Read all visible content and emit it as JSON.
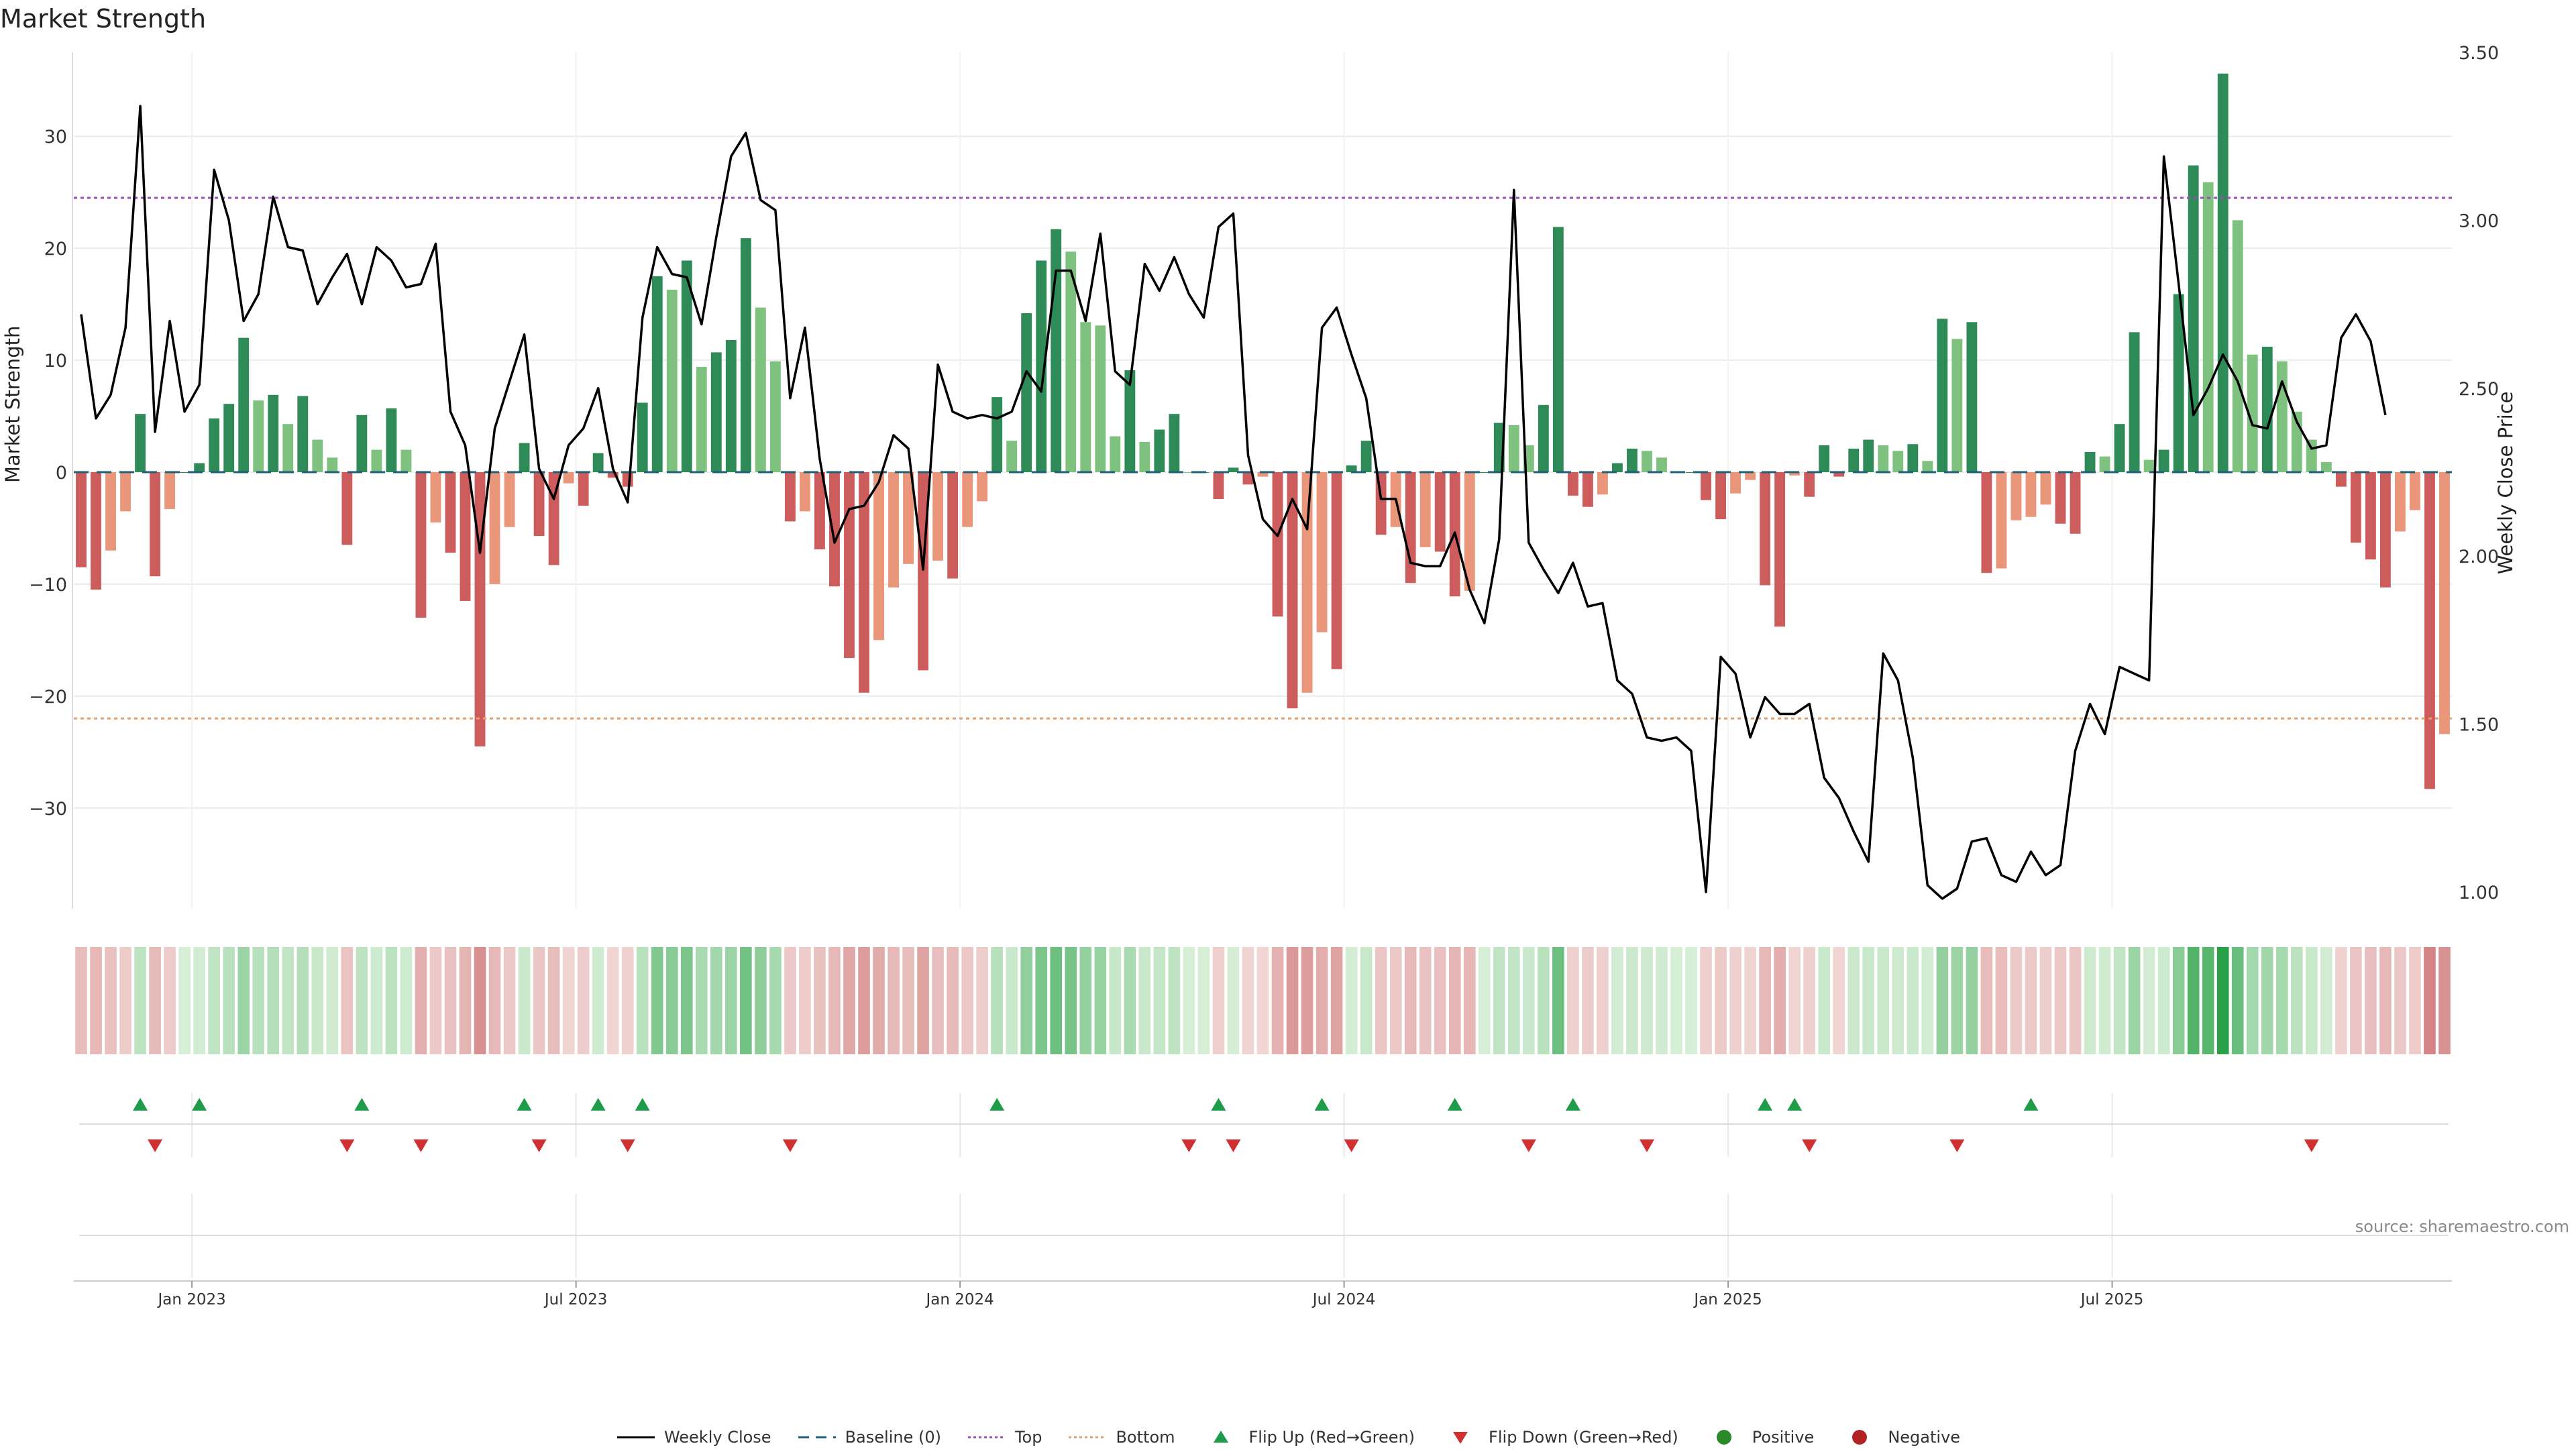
{
  "title": "Market Strength",
  "source": "source: sharemaestro.com",
  "chart_data": {
    "type": "bar",
    "ylabel": "Market Strength",
    "y2label": "Weekly Close Price",
    "ylim": [
      -39,
      37.5
    ],
    "y2lim": [
      0.95,
      3.5
    ],
    "yticks": [
      -30,
      -20,
      -10,
      0,
      10,
      20,
      30
    ],
    "yticklabels": [
      "−30",
      "−20",
      "−10",
      "0",
      "10",
      "20",
      "30"
    ],
    "y2ticks": [
      1.0,
      1.5,
      2.0,
      2.5,
      3.0,
      3.5
    ],
    "y2ticklabels": [
      "1.00",
      "1.50",
      "2.00",
      "2.50",
      "3.00",
      "3.50"
    ],
    "xticklabels": [
      "Jan 2023",
      "Jul 2023",
      "Jan 2024",
      "Jul 2024",
      "Jan 2025",
      "Jul 2025"
    ],
    "xtick_index": [
      8,
      34,
      60,
      86,
      112,
      138
    ],
    "top_line": 24.5,
    "bottom_line": -22,
    "strength": [
      -8.5,
      -10.5,
      -7,
      -3.5,
      5.2,
      -9.3,
      -3.3,
      0,
      0.8,
      4.8,
      6.1,
      12,
      6.4,
      6.9,
      4.3,
      6.8,
      2.9,
      1.3,
      -6.5,
      5.1,
      2,
      5.7,
      2,
      -13,
      -4.5,
      -7.2,
      -11.5,
      -24.5,
      -10,
      -4.9,
      2.6,
      -5.7,
      -8.3,
      -1,
      -3,
      1.7,
      -0.5,
      -1.3,
      6.2,
      17.5,
      16.3,
      18.9,
      9.4,
      10.7,
      11.8,
      20.9,
      14.7,
      9.9,
      -4.4,
      -3.5,
      -6.9,
      -10.2,
      -16.6,
      -19.7,
      -15,
      -10.3,
      -8.2,
      -17.7,
      -7.9,
      -9.5,
      -4.9,
      -2.6,
      6.7,
      2.8,
      14.2,
      18.9,
      21.7,
      19.7,
      13.4,
      13.1,
      3.2,
      9.1,
      2.7,
      3.8,
      5.2,
      0,
      0,
      -2.4,
      0.4,
      -1.1,
      -0.4,
      -12.9,
      -21.1,
      -19.7,
      -14.3,
      -17.6,
      0.6,
      2.8,
      -5.6,
      -4.9,
      -9.9,
      -6.7,
      -7.1,
      -11.1,
      -10.6,
      0,
      4.4,
      4.2,
      2.4,
      6,
      21.9,
      -2.1,
      -3.1,
      -2,
      0.8,
      2.1,
      1.9,
      1.3,
      0,
      0,
      -2.5,
      -4.2,
      -1.9,
      -0.7,
      -10.1,
      -13.8,
      -0.3,
      -2.2,
      2.4,
      -0.4,
      2.1,
      2.9,
      2.4,
      1.9,
      2.5,
      1,
      13.7,
      11.9,
      13.4,
      -9,
      -8.6,
      -4.3,
      -4,
      -2.9,
      -4.6,
      -5.5,
      1.8,
      1.4,
      4.3,
      12.5,
      1.1,
      2,
      15.9,
      27.4,
      25.9,
      35.6,
      22.5,
      10.5,
      11.2,
      9.9,
      5.4,
      2.9,
      0.9,
      -1.3,
      -6.3,
      -7.8,
      -10.3,
      -5.3,
      -3.4,
      -28.3,
      -23.4
    ],
    "price": [
      2.72,
      2.41,
      2.48,
      2.68,
      3.34,
      2.37,
      2.7,
      2.43,
      2.51,
      3.15,
      3.0,
      2.7,
      2.78,
      3.07,
      2.92,
      2.91,
      2.75,
      2.83,
      2.9,
      2.75,
      2.92,
      2.88,
      2.8,
      2.81,
      2.93,
      2.43,
      2.33,
      2.01,
      2.38,
      2.52,
      2.66,
      2.26,
      2.17,
      2.33,
      2.38,
      2.5,
      2.26,
      2.16,
      2.71,
      2.92,
      2.84,
      2.83,
      2.69,
      2.95,
      3.19,
      3.26,
      3.06,
      3.03,
      2.47,
      2.68,
      2.29,
      2.04,
      2.14,
      2.15,
      2.22,
      2.36,
      2.32,
      1.96,
      2.57,
      2.43,
      2.41,
      2.42,
      2.41,
      2.43,
      2.55,
      2.49,
      2.85,
      2.85,
      2.7,
      2.96,
      2.55,
      2.51,
      2.87,
      2.79,
      2.89,
      2.78,
      2.71,
      2.98,
      3.02,
      2.3,
      2.11,
      2.06,
      2.17,
      2.08,
      2.68,
      2.74,
      2.6,
      2.47,
      2.17,
      2.17,
      1.98,
      1.97,
      1.97,
      2.07,
      1.9,
      1.8,
      2.05,
      3.09,
      2.04,
      1.96,
      1.89,
      1.98,
      1.85,
      1.86,
      1.63,
      1.59,
      1.46,
      1.45,
      1.46,
      1.42,
      1.0,
      1.7,
      1.65,
      1.46,
      1.58,
      1.53,
      1.53,
      1.56,
      1.34,
      1.28,
      1.18,
      1.09,
      1.71,
      1.63,
      1.4,
      1.02,
      0.98,
      1.01,
      1.15,
      1.16,
      1.05,
      1.03,
      1.12,
      1.05,
      1.08,
      1.42,
      1.56,
      1.47,
      1.67,
      1.65,
      1.63,
      3.19,
      2.81,
      2.42,
      2.5,
      2.6,
      2.52,
      2.39,
      2.38,
      2.52,
      2.4,
      2.32,
      2.33,
      2.65,
      2.72,
      2.64,
      2.42
    ],
    "flips_up_index": [
      4,
      8,
      19,
      30,
      35,
      38,
      62,
      77,
      84,
      93,
      101,
      114,
      116,
      132
    ],
    "flips_down_index": [
      5,
      18,
      23,
      31,
      37,
      48,
      75,
      78,
      86,
      98,
      106,
      117,
      127,
      151
    ],
    "legend": [
      {
        "label": "Weekly Close",
        "marker": "line",
        "color": "#000000"
      },
      {
        "label": "Baseline (0)",
        "marker": "dash",
        "color": "#1f5f7a"
      },
      {
        "label": "Top",
        "marker": "dot",
        "color": "#9b4dbb"
      },
      {
        "label": "Bottom",
        "marker": "dot",
        "color": "#e0a070"
      },
      {
        "label": "Flip Up (Red→Green)",
        "marker": "tri-up",
        "color": "#1e9c4a"
      },
      {
        "label": "Flip Down (Green→Red)",
        "marker": "tri-down",
        "color": "#d03030"
      },
      {
        "label": "Positive",
        "marker": "circle",
        "color": "#2a8a2a"
      },
      {
        "label": "Negative",
        "marker": "circle",
        "color": "#b22222"
      }
    ]
  }
}
